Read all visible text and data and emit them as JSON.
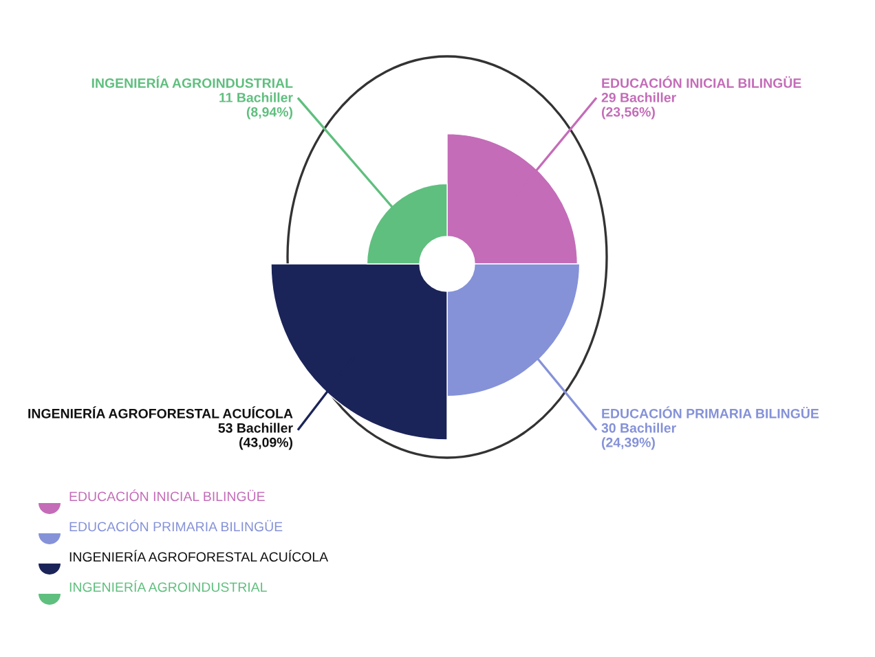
{
  "chart_data": {
    "type": "other",
    "categories": [
      "EDUCACIÓN INICIAL BILINGÜE",
      "EDUCACIÓN PRIMARIA BILINGÜE",
      "INGENIERÍA AGROFORESTAL ACUÍCOLA",
      "INGENIERÍA AGROINDUSTRIAL"
    ],
    "values": [
      29,
      30,
      53,
      11
    ],
    "value_labels": [
      "29 Bachiller\n(23,56%)",
      "30 Bachiller\n(24,39%)",
      "53 Bachiller\n(43,09%)",
      "11 Bachiller\n(8,94%)"
    ],
    "colors": [
      "#c46cb8",
      "#8592d8",
      "#1b2458",
      "#5fbf7e"
    ]
  }
}
